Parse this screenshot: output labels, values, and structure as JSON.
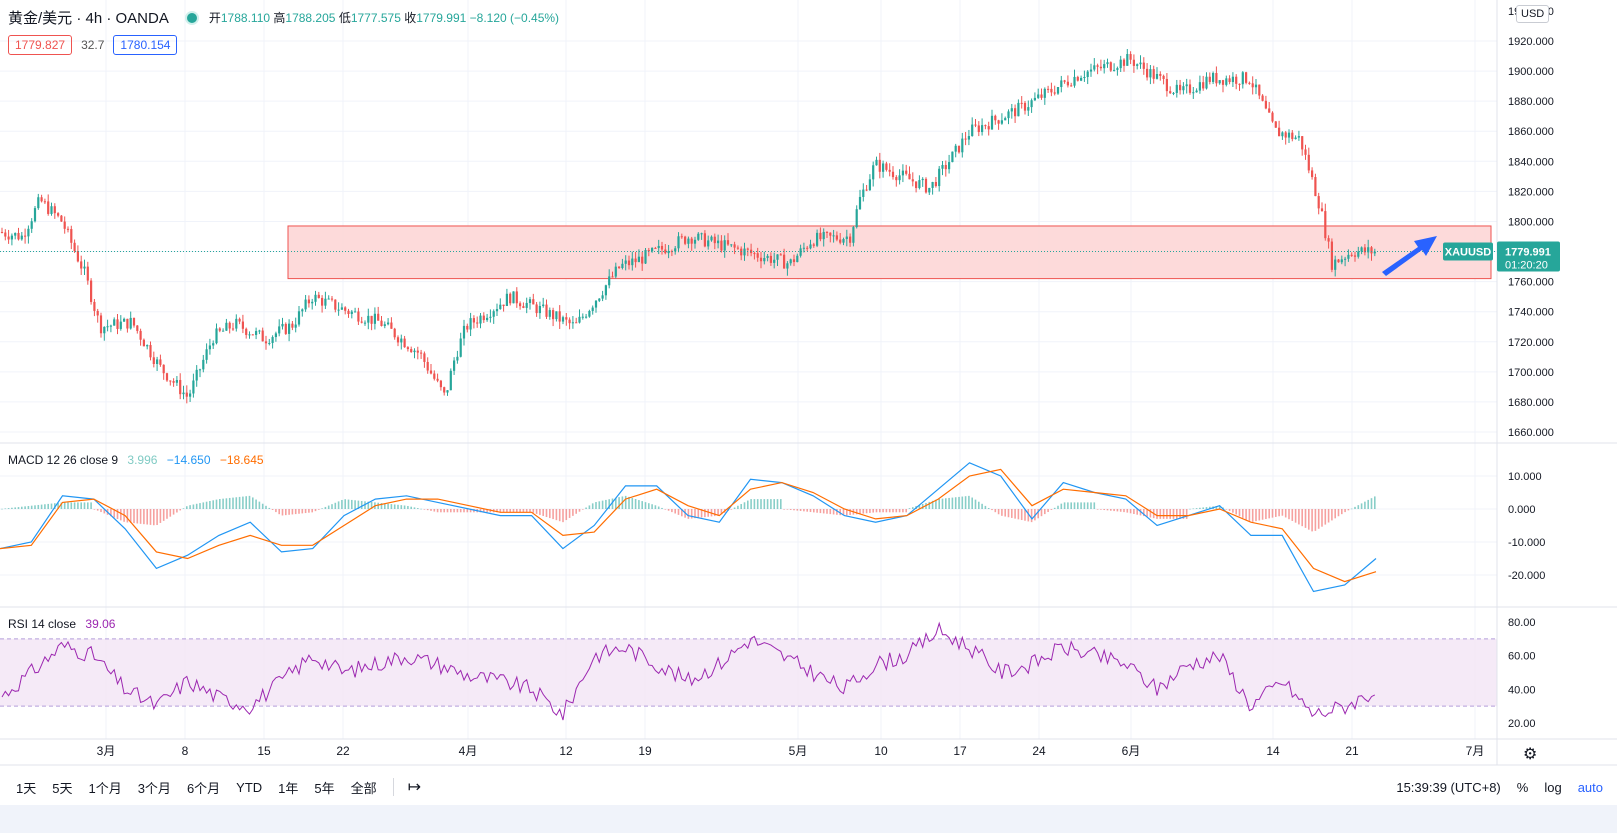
{
  "header": {
    "symbol_title": "黄金/美元 · 4h · OANDA",
    "ohlc": {
      "open_label": "开",
      "open": "1788.110",
      "high_label": "高",
      "high": "1788.205",
      "low_label": "低",
      "low": "1777.575",
      "close_label": "收",
      "close": "1779.991",
      "change": "−8.120 (−0.45%)"
    },
    "bid": "1779.827",
    "spread": "32.7",
    "ask": "1780.154"
  },
  "price_axis": {
    "currency": "USD",
    "ticks": [
      "1920.000",
      "1900.000",
      "1880.000",
      "1860.000",
      "1840.000",
      "1820.000",
      "1800.000",
      "1780.000",
      "1760.000",
      "1740.000",
      "1720.000",
      "1700.000",
      "1680.000",
      "1660.000"
    ],
    "partial_top_tick": "1940.000"
  },
  "price_tag": {
    "symbol": "XAUUSD",
    "price": "1779.991",
    "countdown": "01:20:20"
  },
  "macd": {
    "label": "MACD 12 26 close 9",
    "hist_value": "3.996",
    "macd_value": "−14.650",
    "signal_value": "−18.645",
    "ticks": [
      "10.000",
      "0.000",
      "-10.000",
      "-20.000"
    ]
  },
  "rsi": {
    "label": "RSI 14 close",
    "value": "39.06",
    "ticks": [
      "80.00",
      "60.00",
      "40.00",
      "20.00"
    ]
  },
  "time_axis": {
    "labels": [
      {
        "t": "3月",
        "x": 106
      },
      {
        "t": "8",
        "x": 185
      },
      {
        "t": "15",
        "x": 264
      },
      {
        "t": "22",
        "x": 343
      },
      {
        "t": "4月",
        "x": 468
      },
      {
        "t": "12",
        "x": 566
      },
      {
        "t": "19",
        "x": 645
      },
      {
        "t": "5月",
        "x": 798
      },
      {
        "t": "10",
        "x": 881
      },
      {
        "t": "17",
        "x": 960
      },
      {
        "t": "24",
        "x": 1039
      },
      {
        "t": "6月",
        "x": 1131
      },
      {
        "t": "14",
        "x": 1273
      },
      {
        "t": "21",
        "x": 1352
      },
      {
        "t": "7月",
        "x": 1475
      }
    ]
  },
  "bottom_bar": {
    "timeframes": [
      "1天",
      "5天",
      "1个月",
      "3个月",
      "6个月",
      "YTD",
      "1年",
      "5年",
      "全部"
    ],
    "time": "15:39:39 (UTC+8)",
    "percent": "%",
    "log": "log",
    "auto": "auto"
  },
  "colors": {
    "up": "#26a69a",
    "down": "#ef5350",
    "macd_line": "#2196f3",
    "signal_line": "#ff6d00",
    "rsi_line": "#9c27b0",
    "rsi_band": "#f3e5f5",
    "zone_fill": "#fdd3d3",
    "zone_border": "#ef5350",
    "arrow": "#2962ff"
  },
  "chart_data": [
    {
      "type": "candlestick",
      "title": "黄金/美元 · 4h · OANDA",
      "ylim": [
        1650,
        1945
      ],
      "x": [
        "3月",
        "8",
        "15",
        "22",
        "4月",
        "12",
        "19",
        "5月",
        "10",
        "17",
        "24",
        "6月",
        "14",
        "21",
        "7月"
      ],
      "close_path_anchors": [
        {
          "x": "Feb 22",
          "y": 1793
        },
        {
          "x": "Feb 24",
          "y": 1790
        },
        {
          "x": "Feb 25",
          "y": 1814
        },
        {
          "x": "Feb 26",
          "y": 1800
        },
        {
          "x": "Feb 27",
          "y": 1765
        },
        {
          "x": "Mar 1",
          "y": 1730
        },
        {
          "x": "Mar 3",
          "y": 1733
        },
        {
          "x": "Mar 5",
          "y": 1703
        },
        {
          "x": "Mar 8",
          "y": 1683
        },
        {
          "x": "Mar 10",
          "y": 1723
        },
        {
          "x": "Mar 12",
          "y": 1732
        },
        {
          "x": "Mar 15",
          "y": 1722
        },
        {
          "x": "Mar 17",
          "y": 1731
        },
        {
          "x": "Mar 18",
          "y": 1750
        },
        {
          "x": "Mar 22",
          "y": 1741
        },
        {
          "x": "Mar 25",
          "y": 1733
        },
        {
          "x": "Mar 29",
          "y": 1712
        },
        {
          "x": "Mar 31",
          "y": 1683
        },
        {
          "x": "Apr 1",
          "y": 1710
        },
        {
          "x": "Apr 5",
          "y": 1730
        },
        {
          "x": "Apr 9",
          "y": 1750
        },
        {
          "x": "Apr 12",
          "y": 1740
        },
        {
          "x": "Apr 14",
          "y": 1730
        },
        {
          "x": "Apr 16",
          "y": 1770
        },
        {
          "x": "Apr 19",
          "y": 1775
        },
        {
          "x": "Apr 22",
          "y": 1790
        },
        {
          "x": "Apr 26",
          "y": 1780
        },
        {
          "x": "Apr 29",
          "y": 1772
        },
        {
          "x": "May 3",
          "y": 1788
        },
        {
          "x": "May 5",
          "y": 1790
        },
        {
          "x": "May 7",
          "y": 1815
        },
        {
          "x": "May 10",
          "y": 1838
        },
        {
          "x": "May 13",
          "y": 1822
        },
        {
          "x": "May 17",
          "y": 1860
        },
        {
          "x": "May 21",
          "y": 1875
        },
        {
          "x": "May 26",
          "y": 1898
        },
        {
          "x": "Jun 1",
          "y": 1908
        },
        {
          "x": "Jun 4",
          "y": 1885
        },
        {
          "x": "Jun 7",
          "y": 1895
        },
        {
          "x": "Jun 10",
          "y": 1895
        },
        {
          "x": "Jun 14",
          "y": 1860
        },
        {
          "x": "Jun 16",
          "y": 1855
        },
        {
          "x": "Jun 17",
          "y": 1810
        },
        {
          "x": "Jun 18",
          "y": 1772
        },
        {
          "x": "Jun 21",
          "y": 1780
        },
        {
          "x": "Jun 22",
          "y": 1779.991
        }
      ],
      "zone": {
        "y_from": 1762,
        "y_to": 1797
      }
    },
    {
      "type": "line",
      "title": "MACD 12 26 close 9",
      "ylim": [
        -27,
        16
      ],
      "series": [
        {
          "name": "MACD",
          "values": [
            -12,
            -10,
            4,
            3,
            -6,
            -18,
            -14,
            -8,
            -4,
            -13,
            -12,
            -2,
            3,
            4,
            2,
            0,
            -2,
            -2,
            -12,
            -5,
            7,
            7,
            -2,
            -4,
            9,
            8,
            4,
            -2,
            -4,
            -2,
            6,
            14,
            10,
            -3,
            8,
            5,
            3,
            -5,
            -2,
            1,
            -8,
            -8,
            -25,
            -23,
            -15
          ]
        },
        {
          "name": "Signal",
          "values": [
            -12,
            -11,
            2,
            3,
            -2,
            -13,
            -15,
            -11,
            -8,
            -11,
            -11,
            -5,
            1,
            3,
            3,
            1,
            -1,
            -1,
            -8,
            -7,
            3,
            6,
            1,
            -2,
            6,
            8,
            5,
            0,
            -3,
            -2,
            3,
            10,
            12,
            1,
            6,
            5,
            4,
            -2,
            -2,
            0,
            -4,
            -6,
            -18,
            -22,
            -19
          ]
        },
        {
          "name": "Histogram",
          "values": [
            0,
            1,
            2,
            0,
            -4,
            -5,
            1,
            3,
            4,
            -2,
            -1,
            3,
            2,
            1,
            -1,
            -1,
            -1,
            -1,
            -4,
            2,
            4,
            1,
            -3,
            -2,
            3,
            0,
            -1,
            -2,
            -1,
            0,
            3,
            4,
            -2,
            -4,
            2,
            0,
            -1,
            -3,
            0,
            1,
            -4,
            -2,
            -7,
            -1,
            4
          ]
        }
      ],
      "values_shown": {
        "histogram": 3.996,
        "macd": -14.65,
        "signal": -18.645
      }
    },
    {
      "type": "line",
      "title": "RSI 14 close",
      "ylim": [
        12,
        88
      ],
      "band": [
        30,
        70
      ],
      "series": [
        {
          "name": "RSI",
          "values": [
            35,
            50,
            66,
            60,
            40,
            30,
            45,
            35,
            30,
            45,
            60,
            50,
            55,
            60,
            55,
            48,
            45,
            40,
            25,
            60,
            65,
            55,
            45,
            55,
            70,
            60,
            50,
            40,
            55,
            60,
            75,
            65,
            50,
            55,
            65,
            60,
            55,
            40,
            55,
            60,
            30,
            45,
            25,
            30,
            39.06
          ]
        }
      ],
      "value_shown": 39.06
    }
  ]
}
